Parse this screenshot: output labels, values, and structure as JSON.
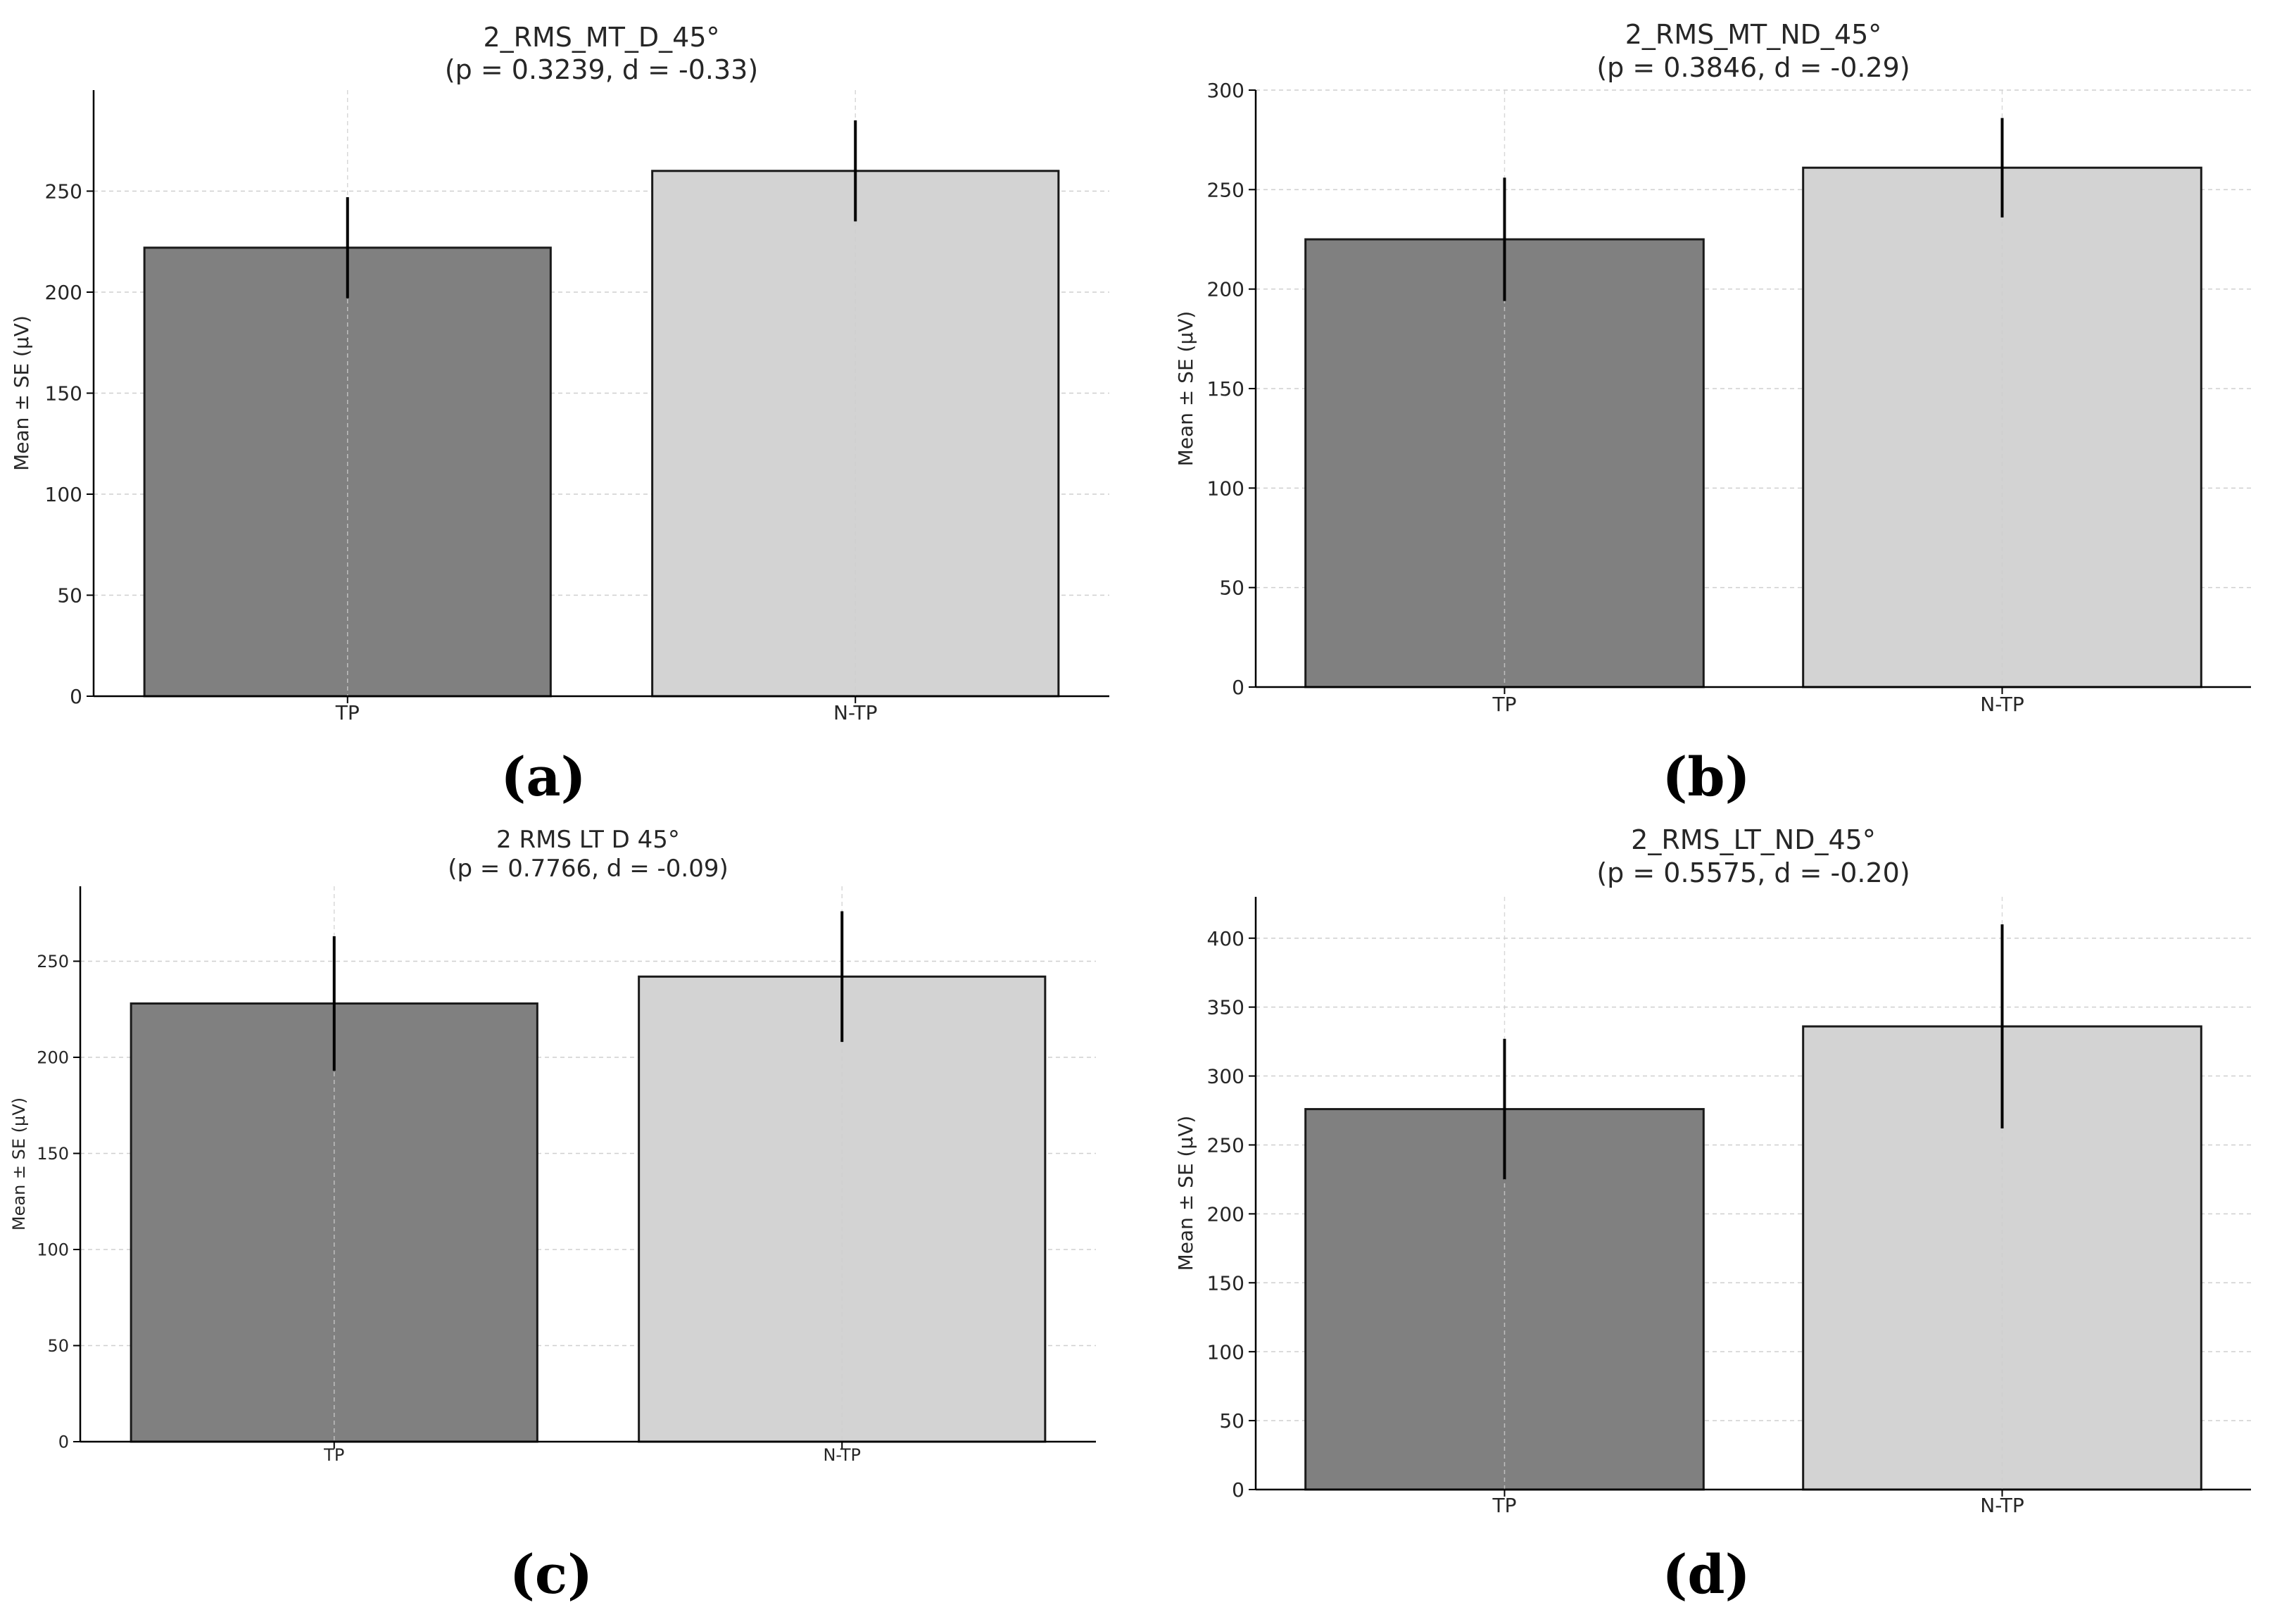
{
  "figure": {
    "panel_labels": [
      "(a)",
      "(b)",
      "(c)",
      "(d)"
    ],
    "colors": {
      "tp_bar": "#808080",
      "ntp_bar": "#d3d3d3",
      "bar_edge": "#1a1a1a",
      "error_bar": "#000000",
      "grid": "#cfcfcf",
      "axis": "#000000"
    }
  },
  "chart_data": [
    {
      "type": "bar",
      "title": "2_RMS_MT_D_45°",
      "subtitle": "(p = 0.3239, d = -0.33)",
      "xlabel": "",
      "ylabel": "Mean ± SE (µV)",
      "categories": [
        "TP",
        "N-TP"
      ],
      "values": [
        222,
        260
      ],
      "errors": [
        25,
        25
      ],
      "yticks": [
        0,
        50,
        100,
        150,
        200,
        250
      ],
      "ylim": [
        0,
        300
      ],
      "grid": true
    },
    {
      "type": "bar",
      "title": "2_RMS_MT_ND_45°",
      "subtitle": "(p = 0.3846, d = -0.29)",
      "xlabel": "",
      "ylabel": "Mean ± SE (µV)",
      "categories": [
        "TP",
        "N-TP"
      ],
      "values": [
        225,
        261
      ],
      "errors": [
        31,
        25
      ],
      "yticks": [
        0,
        50,
        100,
        150,
        200,
        250,
        300
      ],
      "ylim": [
        0,
        300
      ],
      "grid": true
    },
    {
      "type": "bar",
      "title": "2 RMS LT D 45°",
      "subtitle": "(p = 0.7766, d = -0.09)",
      "xlabel": "",
      "ylabel": "Mean ± SE (µV)",
      "categories": [
        "TP",
        "N-TP"
      ],
      "values": [
        228,
        242
      ],
      "errors": [
        35,
        34
      ],
      "yticks": [
        0,
        50,
        100,
        150,
        200,
        250
      ],
      "ylim": [
        0,
        289
      ],
      "grid": true
    },
    {
      "type": "bar",
      "title": "2_RMS_LT_ND_45°",
      "subtitle": "(p = 0.5575, d = -0.20)",
      "xlabel": "",
      "ylabel": "Mean ± SE (µV)",
      "categories": [
        "TP",
        "N-TP"
      ],
      "values": [
        276,
        336
      ],
      "errors": [
        51,
        74
      ],
      "yticks": [
        0,
        50,
        100,
        150,
        200,
        250,
        300,
        350,
        400
      ],
      "ylim": [
        0,
        430
      ],
      "grid": true
    }
  ]
}
